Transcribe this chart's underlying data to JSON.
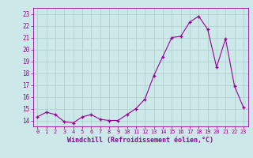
{
  "hours": [
    0,
    1,
    2,
    3,
    4,
    5,
    6,
    7,
    8,
    9,
    10,
    11,
    12,
    13,
    14,
    15,
    16,
    17,
    18,
    19,
    20,
    21,
    22,
    23
  ],
  "values": [
    14.3,
    14.7,
    14.5,
    13.9,
    13.8,
    14.3,
    14.5,
    14.1,
    14.0,
    14.0,
    14.5,
    15.0,
    15.8,
    17.8,
    19.4,
    21.0,
    21.1,
    22.3,
    22.8,
    21.7,
    18.5,
    20.9,
    16.9,
    15.1
  ],
  "line_color": "#990099",
  "marker": "D",
  "marker_size": 2.0,
  "bg_color": "#cce8e8",
  "grid_color": "#aacccc",
  "xlabel": "Windchill (Refroidissement éolien,°C)",
  "xlabel_color": "#990099",
  "tick_color": "#990099",
  "ylim_min": 13.5,
  "ylim_max": 23.5,
  "yticks": [
    14,
    15,
    16,
    17,
    18,
    19,
    20,
    21,
    22,
    23
  ],
  "xtick_fontsize": 5.0,
  "ytick_fontsize": 5.5,
  "xlabel_fontsize": 6.0
}
